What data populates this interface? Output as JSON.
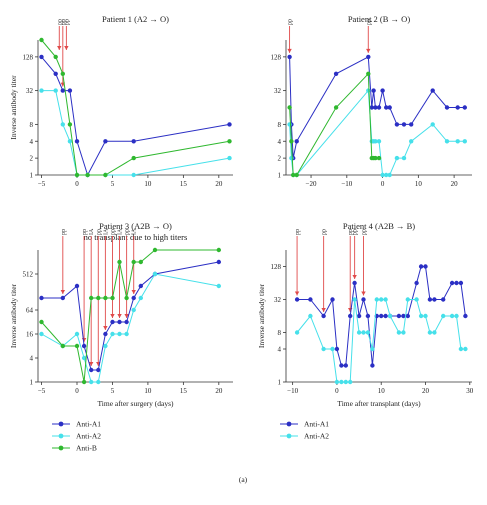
{
  "figure_label": "(a)",
  "colors": {
    "Anti-A1": "#2b2fc4",
    "Anti-A2": "#46e0ea",
    "Anti-B": "#2fb82f",
    "pp_arrow": "#e04a4a",
    "axis": "#333333"
  },
  "chart_data": [
    {
      "type": "line",
      "title": "Patient 1 (A2 → O)",
      "ylabel": "Inverse antibody titer",
      "xlabel": "",
      "ylog2": true,
      "yticks": [
        1,
        2,
        4,
        8,
        32,
        128
      ],
      "ytick_labels": [
        "1",
        "2",
        "4",
        "8",
        "32",
        "128"
      ],
      "xticks": [
        -5,
        0,
        5,
        10,
        15,
        20
      ],
      "xtick_labels": [
        "−5",
        "0",
        "5",
        "10",
        "15",
        "20"
      ],
      "xlim": [
        -5.5,
        22
      ],
      "ylim": [
        1,
        256
      ],
      "pp_label": "pp",
      "pp_events": [
        -2.5,
        -2,
        -1.5
      ],
      "pp_label_extra": "",
      "series": [
        {
          "name": "Anti-A1",
          "x": [
            -5,
            -3,
            -2,
            -1,
            0,
            1.5,
            4,
            8,
            21.5
          ],
          "y": [
            128,
            64,
            32,
            32,
            4,
            1,
            4,
            4,
            8
          ]
        },
        {
          "name": "Anti-A2",
          "x": [
            -5,
            -3,
            -2,
            -1,
            0,
            1.5,
            4,
            8,
            21.5
          ],
          "y": [
            32,
            32,
            8,
            4,
            1,
            1,
            1,
            1,
            2
          ]
        },
        {
          "name": "Anti-B",
          "x": [
            -5,
            -3,
            -2,
            -1,
            0,
            1.5,
            4,
            8,
            21.5
          ],
          "y": [
            256,
            128,
            64,
            8,
            1,
            1,
            1,
            2,
            4
          ]
        }
      ]
    },
    {
      "type": "line",
      "title": "Patient 2 (B → O)",
      "ylabel": "",
      "xlabel": "",
      "ylog2": true,
      "yticks": [
        1,
        2,
        4,
        8,
        32,
        128
      ],
      "ytick_labels": [
        "1",
        "2",
        "4",
        "8",
        "32",
        "128"
      ],
      "xticks": [
        -20,
        -10,
        0,
        10,
        20
      ],
      "xtick_labels": [
        "−20",
        "−10",
        "0",
        "10",
        "20"
      ],
      "xlim": [
        -27,
        25
      ],
      "ylim": [
        1,
        256
      ],
      "pp_label": "pp",
      "pp_events": [
        -26,
        -4
      ],
      "pp_label_extra": "",
      "series": [
        {
          "name": "Anti-A1",
          "x": [
            -26,
            -25.5,
            -25,
            -24,
            -13,
            -4,
            -3,
            -2.5,
            -2,
            -1,
            0,
            1,
            2,
            4,
            6,
            8,
            14,
            18,
            21,
            23
          ],
          "y": [
            128,
            8,
            2,
            4,
            64,
            128,
            16,
            32,
            16,
            16,
            32,
            16,
            16,
            8,
            8,
            8,
            32,
            16,
            16,
            16
          ]
        },
        {
          "name": "Anti-A2",
          "x": [
            -26,
            -25.5,
            -25,
            -24,
            -4,
            -3,
            -2.5,
            -2,
            -1,
            0,
            1,
            2,
            4,
            6,
            8,
            14,
            18,
            21,
            23
          ],
          "y": [
            8,
            2,
            1,
            1,
            32,
            4,
            4,
            4,
            4,
            1,
            1,
            1,
            2,
            2,
            4,
            8,
            4,
            4,
            4
          ]
        },
        {
          "name": "Anti-B",
          "x": [
            -26,
            -25.5,
            -25,
            -24,
            -13,
            -4,
            -3,
            -2.5,
            -2,
            -1
          ],
          "y": [
            16,
            4,
            1,
            1,
            16,
            64,
            2,
            2,
            2,
            2
          ]
        }
      ]
    },
    {
      "type": "line",
      "title": "Patient 3 (A2B → O)",
      "subtitle": "no transplant due to high titers",
      "ylabel": "Inverse antibody titer",
      "xlabel": "Time after surgery (days)",
      "ylog2": true,
      "yticks": [
        1,
        4,
        16,
        64,
        512
      ],
      "ytick_labels": [
        "1",
        "4",
        "16",
        "64",
        "512"
      ],
      "xticks": [
        -5,
        0,
        5,
        10,
        15,
        20
      ],
      "xtick_labels": [
        "−5",
        "0",
        "5",
        "10",
        "15",
        "20"
      ],
      "xlim": [
        -5.5,
        22
      ],
      "ylim": [
        1,
        2048
      ],
      "pp_label": "pp",
      "pp_events": [
        -2,
        1,
        2,
        3,
        4,
        5,
        6,
        7,
        8
      ],
      "pp_label_extra": "IA",
      "series": [
        {
          "name": "Anti-A1",
          "x": [
            -5,
            -2,
            0,
            1,
            2,
            3,
            4,
            5,
            6,
            7,
            8,
            9,
            11,
            20
          ],
          "y": [
            128,
            128,
            256,
            8,
            2,
            2,
            16,
            32,
            32,
            32,
            128,
            256,
            512,
            1024
          ]
        },
        {
          "name": "Anti-A2",
          "x": [
            -5,
            -2,
            0,
            1,
            2,
            3,
            4,
            5,
            6,
            7,
            8,
            9,
            11,
            20
          ],
          "y": [
            16,
            8,
            16,
            4,
            1,
            1,
            8,
            16,
            16,
            16,
            64,
            128,
            512,
            256
          ]
        },
        {
          "name": "Anti-B",
          "x": [
            -5,
            -2,
            0,
            1,
            2,
            3,
            4,
            5,
            6,
            7,
            8,
            9,
            11,
            20
          ],
          "y": [
            32,
            8,
            8,
            1,
            128,
            128,
            128,
            128,
            1024,
            128,
            1024,
            1024,
            2048,
            2048
          ]
        }
      ]
    },
    {
      "type": "line",
      "title": "Patient 4 (A2B → B)",
      "ylabel": "Inverse antibody titer",
      "xlabel": "Time after transplant (days)",
      "ylog2": true,
      "yticks": [
        1,
        4,
        8,
        32,
        128
      ],
      "ytick_labels": [
        "1",
        "4",
        "8",
        "32",
        "128"
      ],
      "xticks": [
        -10,
        0,
        10,
        20,
        30
      ],
      "xtick_labels": [
        "−10",
        "0",
        "10",
        "20",
        "30"
      ],
      "xlim": [
        -11.5,
        30.5
      ],
      "ylim": [
        1,
        256
      ],
      "pp_label": "pp",
      "pp_events": [
        -9,
        -3,
        3,
        4,
        6
      ],
      "pp_label_extra": "",
      "series": [
        {
          "name": "Anti-A1",
          "x": [
            -9,
            -6,
            -3,
            -1,
            0,
            1,
            2,
            3,
            4,
            5,
            6,
            7,
            8,
            9,
            10,
            11,
            12,
            14,
            15,
            16,
            18,
            19,
            20,
            21,
            22,
            24,
            26,
            27,
            28,
            29
          ],
          "y": [
            32,
            32,
            16,
            32,
            4,
            2,
            2,
            16,
            64,
            16,
            32,
            16,
            2,
            16,
            16,
            16,
            16,
            16,
            16,
            16,
            64,
            128,
            128,
            32,
            32,
            32,
            64,
            64,
            64,
            16
          ]
        },
        {
          "name": "Anti-A2",
          "x": [
            -9,
            -6,
            -3,
            -1,
            0,
            1,
            2,
            3,
            4,
            5,
            6,
            7,
            8,
            9,
            10,
            11,
            12,
            14,
            15,
            16,
            18,
            19,
            20,
            21,
            22,
            24,
            26,
            27,
            28,
            29
          ],
          "y": [
            8,
            16,
            4,
            4,
            1,
            1,
            1,
            1,
            32,
            8,
            8,
            8,
            4,
            32,
            32,
            32,
            16,
            8,
            8,
            32,
            32,
            16,
            16,
            8,
            8,
            16,
            16,
            16,
            4,
            4
          ]
        }
      ]
    }
  ],
  "legends": [
    {
      "items": [
        "Anti-A1",
        "Anti-A2",
        "Anti-B"
      ]
    },
    {
      "items": [
        "Anti-A1",
        "Anti-A2"
      ]
    }
  ]
}
